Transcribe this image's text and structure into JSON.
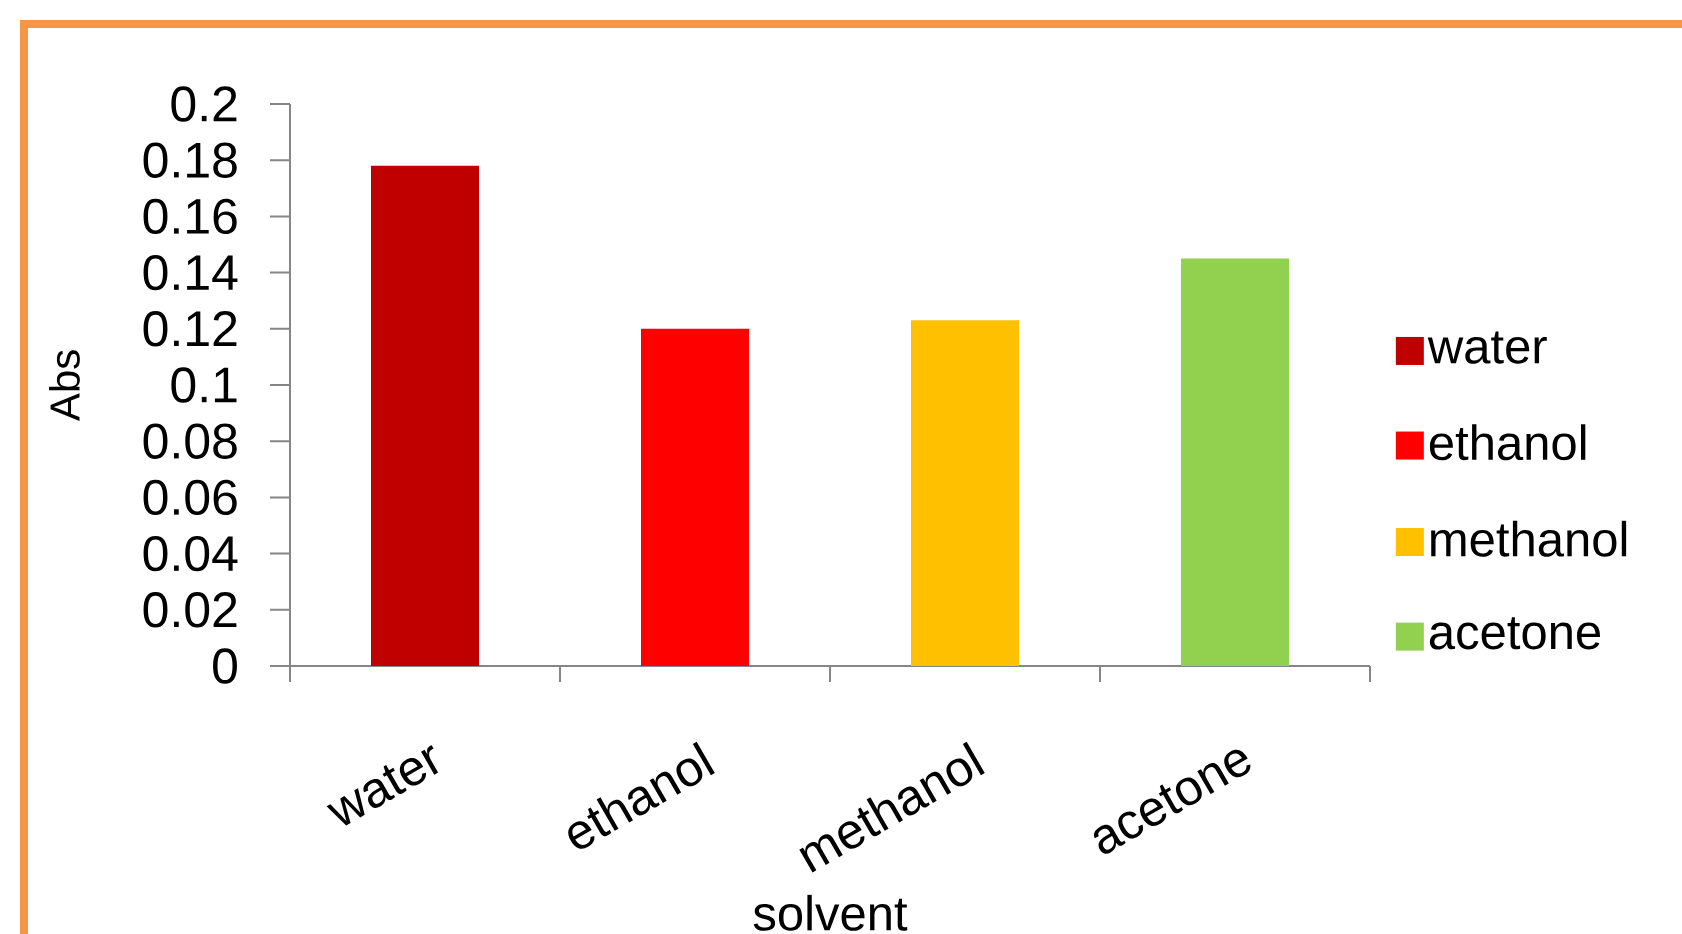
{
  "chart_data": {
    "type": "bar",
    "xlabel": "solvent",
    "ylabel": "Abs",
    "categories": [
      "water",
      "ethanol",
      "methanol",
      "acetone"
    ],
    "series": [
      {
        "name": "water",
        "color": "#c00000",
        "values": [
          0.178,
          null,
          null,
          null
        ]
      },
      {
        "name": "ethanol",
        "color": "#ff0000",
        "values": [
          null,
          0.12,
          null,
          null
        ]
      },
      {
        "name": "methanol",
        "color": "#ffc000",
        "values": [
          null,
          null,
          0.123,
          null
        ]
      },
      {
        "name": "acetone",
        "color": "#92d050",
        "values": [
          null,
          null,
          null,
          0.145
        ]
      }
    ],
    "ylim": [
      0,
      0.2
    ],
    "yticks": [
      0,
      0.02,
      0.04,
      0.06,
      0.08,
      0.1,
      0.12,
      0.14,
      0.16,
      0.18,
      0.2
    ],
    "legend": "right"
  }
}
